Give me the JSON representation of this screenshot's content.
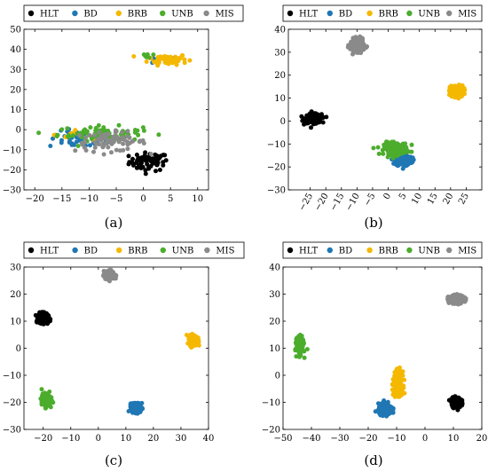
{
  "classes": [
    "HLT",
    "BD",
    "BRB",
    "UNB",
    "MIS"
  ],
  "colors": {
    "HLT": "#000000",
    "BD": "#1f77b4",
    "BRB": "#f5b800",
    "UNB": "#4cad2d",
    "MIS": "#8a8a8a"
  },
  "chart_data": [
    {
      "type": "scatter",
      "caption": "(a)",
      "xlim": [
        -22,
        12
      ],
      "ylim": [
        -30,
        50
      ],
      "xticks": [
        -20,
        -15,
        -10,
        -5,
        0,
        5,
        10
      ],
      "yticks": [
        -30,
        -20,
        -10,
        0,
        10,
        20,
        30,
        40,
        50
      ],
      "series": [
        {
          "name": "HLT",
          "clusters": [
            {
              "cx": 1.0,
              "cy": -16,
              "sx": 3.0,
              "sy": 3.8,
              "n": 70
            }
          ]
        },
        {
          "name": "BD",
          "clusters": [
            {
              "cx": -12,
              "cy": -5,
              "sx": 4.5,
              "sy": 3.5,
              "n": 45
            },
            {
              "cx": 4,
              "cy": 35,
              "sx": 2.5,
              "sy": 2,
              "n": 10
            }
          ]
        },
        {
          "name": "BRB",
          "clusters": [
            {
              "cx": 4.5,
              "cy": 35,
              "sx": 3,
              "sy": 2.2,
              "n": 65
            },
            {
              "cx": -14,
              "cy": -3,
              "sx": 3,
              "sy": 2,
              "n": 8
            }
          ]
        },
        {
          "name": "UNB",
          "clusters": [
            {
              "cx": -8,
              "cy": -2,
              "sx": 6.5,
              "sy": 3,
              "n": 75
            },
            {
              "cx": 1,
              "cy": 37,
              "sx": 1.5,
              "sy": 1.5,
              "n": 6
            }
          ]
        },
        {
          "name": "MIS",
          "clusters": [
            {
              "cx": -6,
              "cy": -6,
              "sx": 5.5,
              "sy": 4,
              "n": 75
            }
          ]
        }
      ]
    },
    {
      "type": "scatter",
      "caption": "(b)",
      "xlim": [
        -32,
        30
      ],
      "ylim": [
        -30,
        40
      ],
      "xticks": [
        -25,
        -20,
        -15,
        -10,
        -5,
        0,
        5,
        10,
        15,
        20,
        25
      ],
      "yticks": [
        -30,
        -20,
        -10,
        0,
        10,
        20,
        30,
        40
      ],
      "rotate_xticks": true,
      "series": [
        {
          "name": "HLT",
          "clusters": [
            {
              "cx": -24,
              "cy": 1,
              "sx": 2.2,
              "sy": 1.6,
              "n": 230
            }
          ]
        },
        {
          "name": "BD",
          "clusters": [
            {
              "cx": 5,
              "cy": -17,
              "sx": 2.2,
              "sy": 2.2,
              "n": 170
            }
          ]
        },
        {
          "name": "BRB",
          "clusters": [
            {
              "cx": 22,
              "cy": 13,
              "sx": 1.8,
              "sy": 2.0,
              "n": 200
            }
          ]
        },
        {
          "name": "UNB",
          "clusters": [
            {
              "cx": 2.5,
              "cy": -12,
              "sx": 3.2,
              "sy": 2.2,
              "n": 170
            }
          ]
        },
        {
          "name": "MIS",
          "clusters": [
            {
              "cx": -10,
              "cy": 33,
              "sx": 1.8,
              "sy": 2.2,
              "n": 200
            }
          ]
        }
      ]
    },
    {
      "type": "scatter",
      "caption": "(c)",
      "xlim": [
        -27,
        40
      ],
      "ylim": [
        -30,
        30
      ],
      "xticks": [
        -20,
        -10,
        0,
        10,
        20,
        30,
        40
      ],
      "yticks": [
        -30,
        -20,
        -10,
        0,
        10,
        20,
        30
      ],
      "series": [
        {
          "name": "HLT",
          "clusters": [
            {
              "cx": -20,
              "cy": 11,
              "sx": 1.5,
              "sy": 1.5,
              "n": 230
            }
          ]
        },
        {
          "name": "BD",
          "clusters": [
            {
              "cx": 14,
              "cy": -22,
              "sx": 1.5,
              "sy": 1.4,
              "n": 230
            }
          ]
        },
        {
          "name": "BRB",
          "clusters": [
            {
              "cx": 34.5,
              "cy": 3,
              "sx": 1.2,
              "sy": 1.5,
              "n": 230
            }
          ]
        },
        {
          "name": "UNB",
          "clusters": [
            {
              "cx": -19,
              "cy": -19,
              "sx": 1.3,
              "sy": 1.8,
              "n": 230
            }
          ]
        },
        {
          "name": "MIS",
          "clusters": [
            {
              "cx": 4,
              "cy": 27,
              "sx": 1.6,
              "sy": 1.2,
              "n": 230
            }
          ]
        }
      ]
    },
    {
      "type": "scatter",
      "caption": "(d)",
      "xlim": [
        -50,
        20
      ],
      "ylim": [
        -20,
        40
      ],
      "xticks": [
        -50,
        -40,
        -30,
        -20,
        -10,
        0,
        10,
        20
      ],
      "yticks": [
        -20,
        -10,
        0,
        10,
        20,
        30,
        40
      ],
      "series": [
        {
          "name": "HLT",
          "clusters": [
            {
              "cx": 11,
              "cy": -10,
              "sx": 1.4,
              "sy": 1.5,
              "n": 230
            }
          ]
        },
        {
          "name": "BD",
          "clusters": [
            {
              "cx": -14,
              "cy": -12.5,
              "sx": 2.0,
              "sy": 1.6,
              "n": 230
            }
          ]
        },
        {
          "name": "BRB",
          "clusters": [
            {
              "cx": -9.5,
              "cy": -3,
              "sx": 1.2,
              "sy": 3.5,
              "n": 230
            }
          ]
        },
        {
          "name": "UNB",
          "clusters": [
            {
              "cx": -44,
              "cy": 11,
              "sx": 1.0,
              "sy": 2.5,
              "n": 230
            }
          ]
        },
        {
          "name": "MIS",
          "clusters": [
            {
              "cx": 11,
              "cy": 28,
              "sx": 2.2,
              "sy": 1.2,
              "n": 230
            }
          ]
        }
      ]
    }
  ]
}
